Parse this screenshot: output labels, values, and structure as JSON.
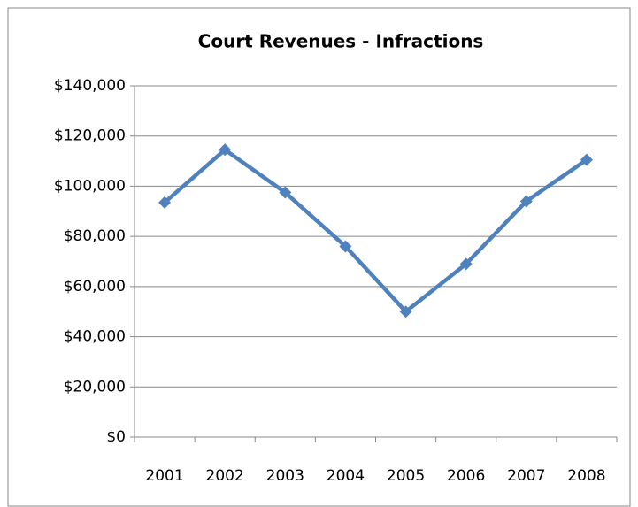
{
  "chart_data": {
    "type": "line",
    "title": "Court Revenues - Infractions",
    "categories": [
      "2001",
      "2002",
      "2003",
      "2004",
      "2005",
      "2006",
      "2007",
      "2008"
    ],
    "series": [
      {
        "name": "Court Revenues",
        "color": "#4f81bd",
        "values": [
          93500,
          114500,
          97500,
          76000,
          50000,
          69000,
          94000,
          110500
        ]
      }
    ],
    "ylim": [
      0,
      140000
    ],
    "yticks": [
      {
        "value": 0,
        "label": "$0"
      },
      {
        "value": 20000,
        "label": "$20,000"
      },
      {
        "value": 40000,
        "label": "$40,000"
      },
      {
        "value": 60000,
        "label": "$60,000"
      },
      {
        "value": 80000,
        "label": "$80,000"
      },
      {
        "value": 100000,
        "label": "$100,000"
      },
      {
        "value": 120000,
        "label": "$120,000"
      },
      {
        "value": 140000,
        "label": "$140,000"
      }
    ],
    "grid": true
  }
}
